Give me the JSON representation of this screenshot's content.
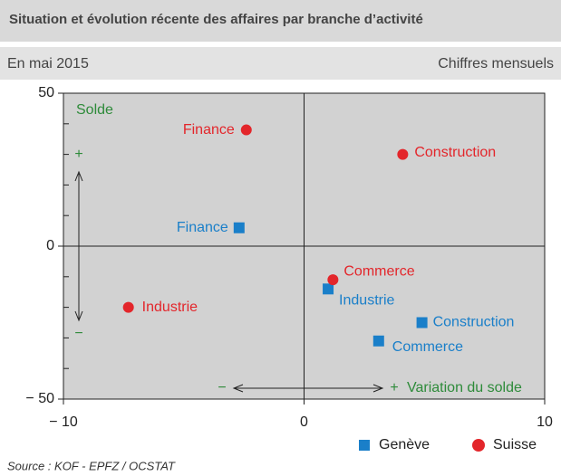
{
  "chart_data": {
    "type": "scatter",
    "title": "Situation et évolution récente des affaires par branche d’activité",
    "subtitle": "En mai 2015",
    "note_right": "Chiffres mensuels",
    "source": "Source : KOF - EPFZ / OCSTAT",
    "xlim": [
      -10,
      10
    ],
    "ylim": [
      -50,
      50
    ],
    "xticks": [
      {
        "value": -10,
        "label": "− 10"
      },
      0,
      10
    ],
    "yticks": [
      50,
      0,
      {
        "value": -50,
        "label": "− 50"
      }
    ],
    "yminor": [
      40,
      30,
      20,
      10,
      -10,
      -20,
      -30,
      -40
    ],
    "annotations": {
      "y_title": "Solde",
      "x_title": "Variation du solde",
      "plus": "+",
      "minus": "−"
    },
    "series": [
      {
        "name": "Genève",
        "color": "#1a7fc9",
        "marker": "square",
        "labels": [
          "Finance",
          "Industrie",
          "Construction",
          "Commerce"
        ],
        "x": [
          -2.7,
          1.0,
          4.9,
          3.1
        ],
        "values": [
          6,
          -14,
          -25,
          -31
        ]
      },
      {
        "name": "Suisse",
        "color": "#e3262b",
        "marker": "circle",
        "labels": [
          "Finance",
          "Construction",
          "Commerce",
          "Industrie"
        ],
        "x": [
          -2.4,
          4.1,
          1.2,
          -7.3
        ],
        "values": [
          38,
          30,
          -11,
          -20
        ]
      }
    ]
  }
}
